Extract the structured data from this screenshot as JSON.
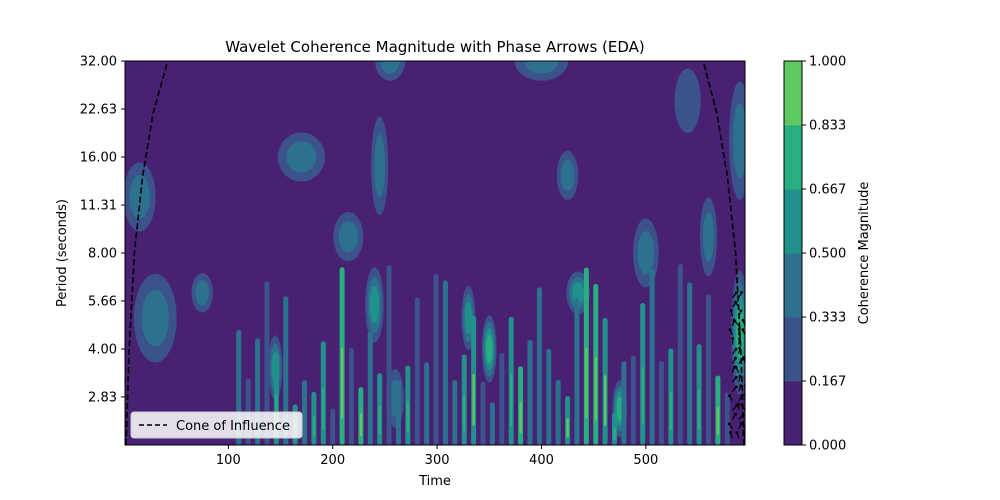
{
  "chart_data": {
    "type": "heatmap",
    "title": "Wavelet Coherence Magnitude with Phase Arrows (EDA)",
    "xlabel": "Time",
    "ylabel": "Period (seconds)",
    "xlim": [
      1,
      595
    ],
    "ylim": [
      2,
      32
    ],
    "y_scale": "log2",
    "x_ticks": [
      100,
      200,
      300,
      400,
      500
    ],
    "y_ticks": [
      "2.83",
      "4.00",
      "5.66",
      "8.00",
      "11.31",
      "16.00",
      "22.63",
      "32.00"
    ],
    "y_tick_values": [
      2.83,
      4.0,
      5.66,
      8.0,
      11.31,
      16.0,
      22.63,
      32.0
    ],
    "colorbar": {
      "label": "Coherence Magnitude",
      "ticks": [
        "0.000",
        "0.167",
        "0.333",
        "0.500",
        "0.667",
        "0.833",
        "1.000"
      ],
      "levels": [
        0.0,
        0.167,
        0.333,
        0.5,
        0.667,
        0.833,
        1.0
      ],
      "colors": [
        "#482173",
        "#3b528b",
        "#2c728e",
        "#21918c",
        "#28ae80",
        "#5ec962",
        "#c8e020"
      ]
    },
    "legend": {
      "position": "lower-left",
      "entries": [
        {
          "label": "Cone of Influence",
          "style": "dashed",
          "color": "#000000"
        }
      ]
    },
    "cone_of_influence": {
      "style": "dashed",
      "left": {
        "x": [
          2,
          5,
          10,
          18,
          28,
          42
        ],
        "y": [
          2,
          4,
          8,
          14,
          22,
          32
        ]
      },
      "right": {
        "x": [
          594,
          591,
          586,
          578,
          568,
          555
        ],
        "y": [
          2,
          4,
          8,
          14,
          22,
          32
        ]
      }
    },
    "phase_arrows": {
      "x_range": [
        578,
        595
      ],
      "y_range": [
        2,
        6
      ]
    },
    "coherence_field": [
      {
        "x": 30,
        "y": 4.0,
        "value": 0.85,
        "wx": 12,
        "wy": 0.25
      },
      {
        "x": 30,
        "y": 5.0,
        "value": 0.6,
        "wx": 20,
        "wy": 0.45
      },
      {
        "x": 15,
        "y": 12,
        "value": 0.5,
        "wx": 15,
        "wy": 0.35
      },
      {
        "x": 75,
        "y": 6.0,
        "value": 0.6,
        "wx": 10,
        "wy": 0.2
      },
      {
        "x": 170,
        "y": 16,
        "value": 0.6,
        "wx": 22,
        "wy": 0.25
      },
      {
        "x": 240,
        "y": 5.5,
        "value": 0.7,
        "wx": 8,
        "wy": 0.35
      },
      {
        "x": 245,
        "y": 15,
        "value": 0.55,
        "wx": 8,
        "wy": 0.5
      },
      {
        "x": 400,
        "y": 32,
        "value": 0.55,
        "wx": 25,
        "wy": 0.2
      },
      {
        "x": 255,
        "y": 32,
        "value": 0.55,
        "wx": 14,
        "wy": 0.2
      },
      {
        "x": 425,
        "y": 14,
        "value": 0.6,
        "wx": 10,
        "wy": 0.25
      },
      {
        "x": 435,
        "y": 6.0,
        "value": 0.7,
        "wx": 10,
        "wy": 0.2
      },
      {
        "x": 330,
        "y": 5.0,
        "value": 0.7,
        "wx": 6,
        "wy": 0.3
      },
      {
        "x": 350,
        "y": 4.0,
        "value": 0.85,
        "wx": 6,
        "wy": 0.3
      },
      {
        "x": 475,
        "y": 2.6,
        "value": 0.9,
        "wx": 6,
        "wy": 0.25
      },
      {
        "x": 560,
        "y": 9.0,
        "value": 0.55,
        "wx": 8,
        "wy": 0.4
      },
      {
        "x": 590,
        "y": 4.5,
        "value": 0.95,
        "wx": 7,
        "wy": 0.55
      },
      {
        "x": 590,
        "y": 18,
        "value": 0.6,
        "wx": 10,
        "wy": 0.6
      },
      {
        "x": 145,
        "y": 3.5,
        "value": 0.7,
        "wx": 6,
        "wy": 0.3
      },
      {
        "x": 215,
        "y": 9.0,
        "value": 0.55,
        "wx": 14,
        "wy": 0.25
      },
      {
        "x": 260,
        "y": 2.8,
        "value": 0.6,
        "wx": 8,
        "wy": 0.3
      },
      {
        "x": 500,
        "y": 8.0,
        "value": 0.5,
        "wx": 12,
        "wy": 0.35
      },
      {
        "x": 540,
        "y": 24,
        "value": 0.45,
        "wx": 15,
        "wy": 0.4
      }
    ]
  }
}
